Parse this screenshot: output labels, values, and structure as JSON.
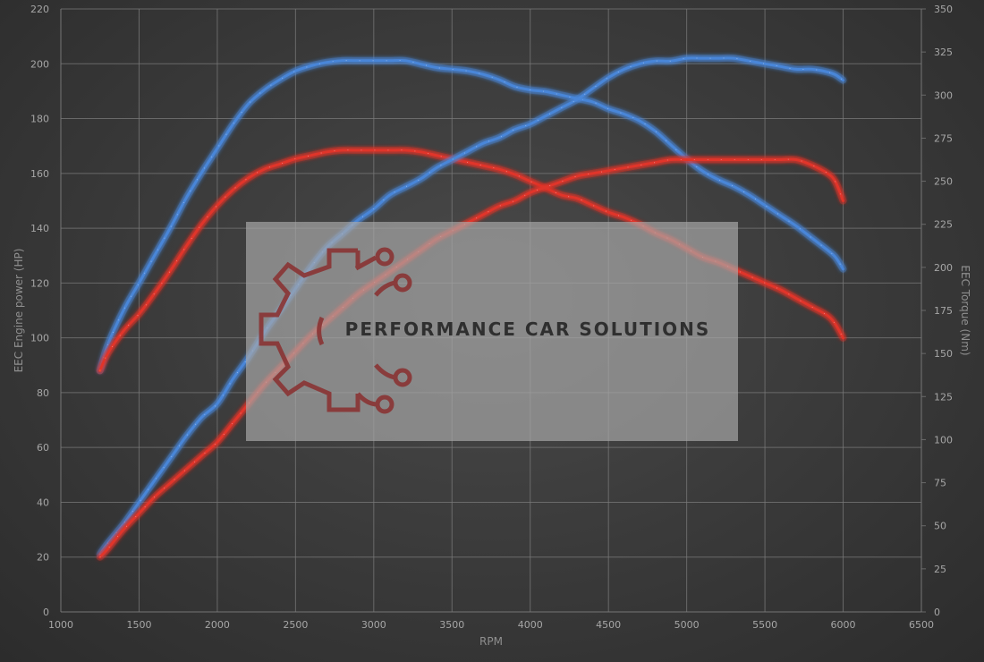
{
  "chart_data": {
    "type": "line",
    "xlabel": "RPM",
    "ylabel_left": "EEC Engine power (HP)",
    "ylabel_right": "EEC Torque (Nm)",
    "xlim": [
      1000,
      6500
    ],
    "ylim_left": [
      0,
      220
    ],
    "ylim_right": [
      0,
      350
    ],
    "x_ticks": [
      "1000",
      "1500",
      "2000",
      "2500",
      "3000",
      "3500",
      "4000",
      "4500",
      "5000",
      "5500",
      "6000",
      "6500"
    ],
    "y_left_ticks": [
      "0",
      "20",
      "40",
      "60",
      "80",
      "100",
      "120",
      "140",
      "160",
      "180",
      "200",
      "220"
    ],
    "y_right_ticks": [
      "0",
      "25",
      "50",
      "75",
      "100",
      "125",
      "150",
      "175",
      "200",
      "225",
      "250",
      "275",
      "300",
      "325",
      "350"
    ],
    "grid": true,
    "series": [
      {
        "color": "#4a86d8",
        "axis": "right",
        "x": [
          1250,
          1300,
          1400,
          1500,
          1600,
          1700,
          1800,
          1900,
          2000,
          2100,
          2200,
          2300,
          2400,
          2500,
          2600,
          2700,
          2800,
          2900,
          3000,
          3100,
          3200,
          3300,
          3400,
          3500,
          3600,
          3700,
          3800,
          3900,
          4000,
          4100,
          4200,
          4300,
          4400,
          4500,
          4600,
          4700,
          4800,
          4900,
          5000,
          5100,
          5200,
          5300,
          5400,
          5500,
          5600,
          5700,
          5800,
          5900,
          5950,
          6000
        ],
        "values": [
          140,
          155,
          175,
          191,
          207,
          223,
          240,
          255,
          269,
          283,
          295,
          303,
          309,
          314,
          317,
          319,
          320,
          320,
          320,
          320,
          320,
          318,
          316,
          315,
          314,
          312,
          309,
          305,
          303,
          302,
          300,
          298,
          296,
          292,
          289,
          285,
          279,
          271,
          263,
          256,
          251,
          247,
          242,
          236,
          230,
          224,
          217,
          210,
          206,
          199
        ]
      },
      {
        "color": "#e0352b",
        "axis": "right",
        "x": [
          1250,
          1300,
          1400,
          1500,
          1600,
          1700,
          1800,
          1900,
          2000,
          2100,
          2200,
          2300,
          2400,
          2500,
          2600,
          2700,
          2800,
          2900,
          3000,
          3100,
          3200,
          3300,
          3400,
          3500,
          3600,
          3700,
          3800,
          3900,
          4000,
          4100,
          4200,
          4300,
          4400,
          4500,
          4600,
          4700,
          4800,
          4900,
          5000,
          5100,
          5200,
          5300,
          5400,
          5500,
          5600,
          5700,
          5800,
          5900,
          5950,
          6000
        ],
        "values": [
          140,
          150,
          163,
          173,
          185,
          198,
          212,
          225,
          236,
          245,
          252,
          257,
          260,
          263,
          265,
          267,
          268,
          268,
          268,
          268,
          268,
          267,
          265,
          263,
          261,
          259,
          257,
          254,
          250,
          246,
          242,
          240,
          236,
          232,
          229,
          225,
          220,
          216,
          211,
          206,
          203,
          199,
          195,
          191,
          187,
          182,
          177,
          172,
          167,
          159
        ]
      },
      {
        "color": "#4a86d8",
        "axis": "left",
        "x": [
          1250,
          1300,
          1400,
          1500,
          1600,
          1700,
          1800,
          1900,
          2000,
          2100,
          2200,
          2300,
          2400,
          2500,
          2600,
          2700,
          2800,
          2900,
          3000,
          3100,
          3200,
          3300,
          3400,
          3500,
          3600,
          3700,
          3800,
          3900,
          4000,
          4100,
          4200,
          4300,
          4400,
          4500,
          4600,
          4700,
          4800,
          4900,
          5000,
          5100,
          5200,
          5300,
          5400,
          5500,
          5600,
          5700,
          5800,
          5900,
          5950,
          6000
        ],
        "values": [
          21,
          25,
          32,
          40,
          48,
          56,
          64,
          71,
          76,
          85,
          93,
          102,
          110,
          118,
          126,
          133,
          138,
          143,
          147,
          152,
          155,
          158,
          162,
          165,
          168,
          171,
          173,
          176,
          178,
          181,
          184,
          187,
          191,
          195,
          198,
          200,
          201,
          201,
          202,
          202,
          202,
          202,
          201,
          200,
          199,
          198,
          198,
          197,
          196,
          194
        ]
      },
      {
        "color": "#e0352b",
        "axis": "left",
        "x": [
          1250,
          1300,
          1400,
          1500,
          1600,
          1700,
          1800,
          1900,
          2000,
          2100,
          2200,
          2300,
          2400,
          2500,
          2600,
          2700,
          2800,
          2900,
          3000,
          3100,
          3200,
          3300,
          3400,
          3500,
          3600,
          3700,
          3800,
          3900,
          4000,
          4100,
          4200,
          4300,
          4400,
          4500,
          4600,
          4700,
          4800,
          4900,
          5000,
          5100,
          5200,
          5300,
          5400,
          5500,
          5600,
          5700,
          5800,
          5900,
          5950,
          6000
        ],
        "values": [
          20,
          23,
          30,
          36,
          42,
          47,
          52,
          57,
          62,
          69,
          76,
          83,
          89,
          95,
          101,
          106,
          111,
          116,
          120,
          124,
          128,
          132,
          136,
          139,
          142,
          145,
          148,
          150,
          153,
          155,
          157,
          159,
          160,
          161,
          162,
          163,
          164,
          165,
          165,
          165,
          165,
          165,
          165,
          165,
          165,
          165,
          163,
          160,
          157,
          150
        ]
      }
    ]
  },
  "watermark": {
    "text": "PERFORMANCE CAR SOLUTIONS"
  }
}
